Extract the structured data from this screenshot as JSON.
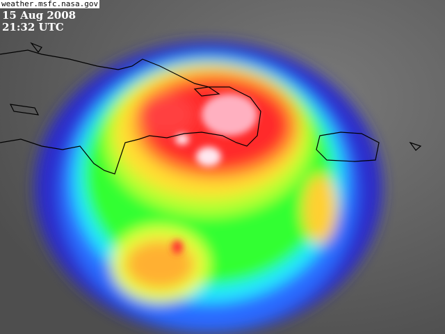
{
  "source_label": "weather.msfc.nasa.gov",
  "date": "15 Aug 2008",
  "time": "21:32 UTC",
  "image": {
    "type": "infrared satellite image",
    "palette": {
      "background_gray": "#6a6a6a",
      "blue": "#1e2cff",
      "green": "#2cff2c",
      "yellow": "#ffe030",
      "orange": "#ff9a30",
      "red": "#ff2a2a",
      "white": "#ffe0e8"
    }
  }
}
